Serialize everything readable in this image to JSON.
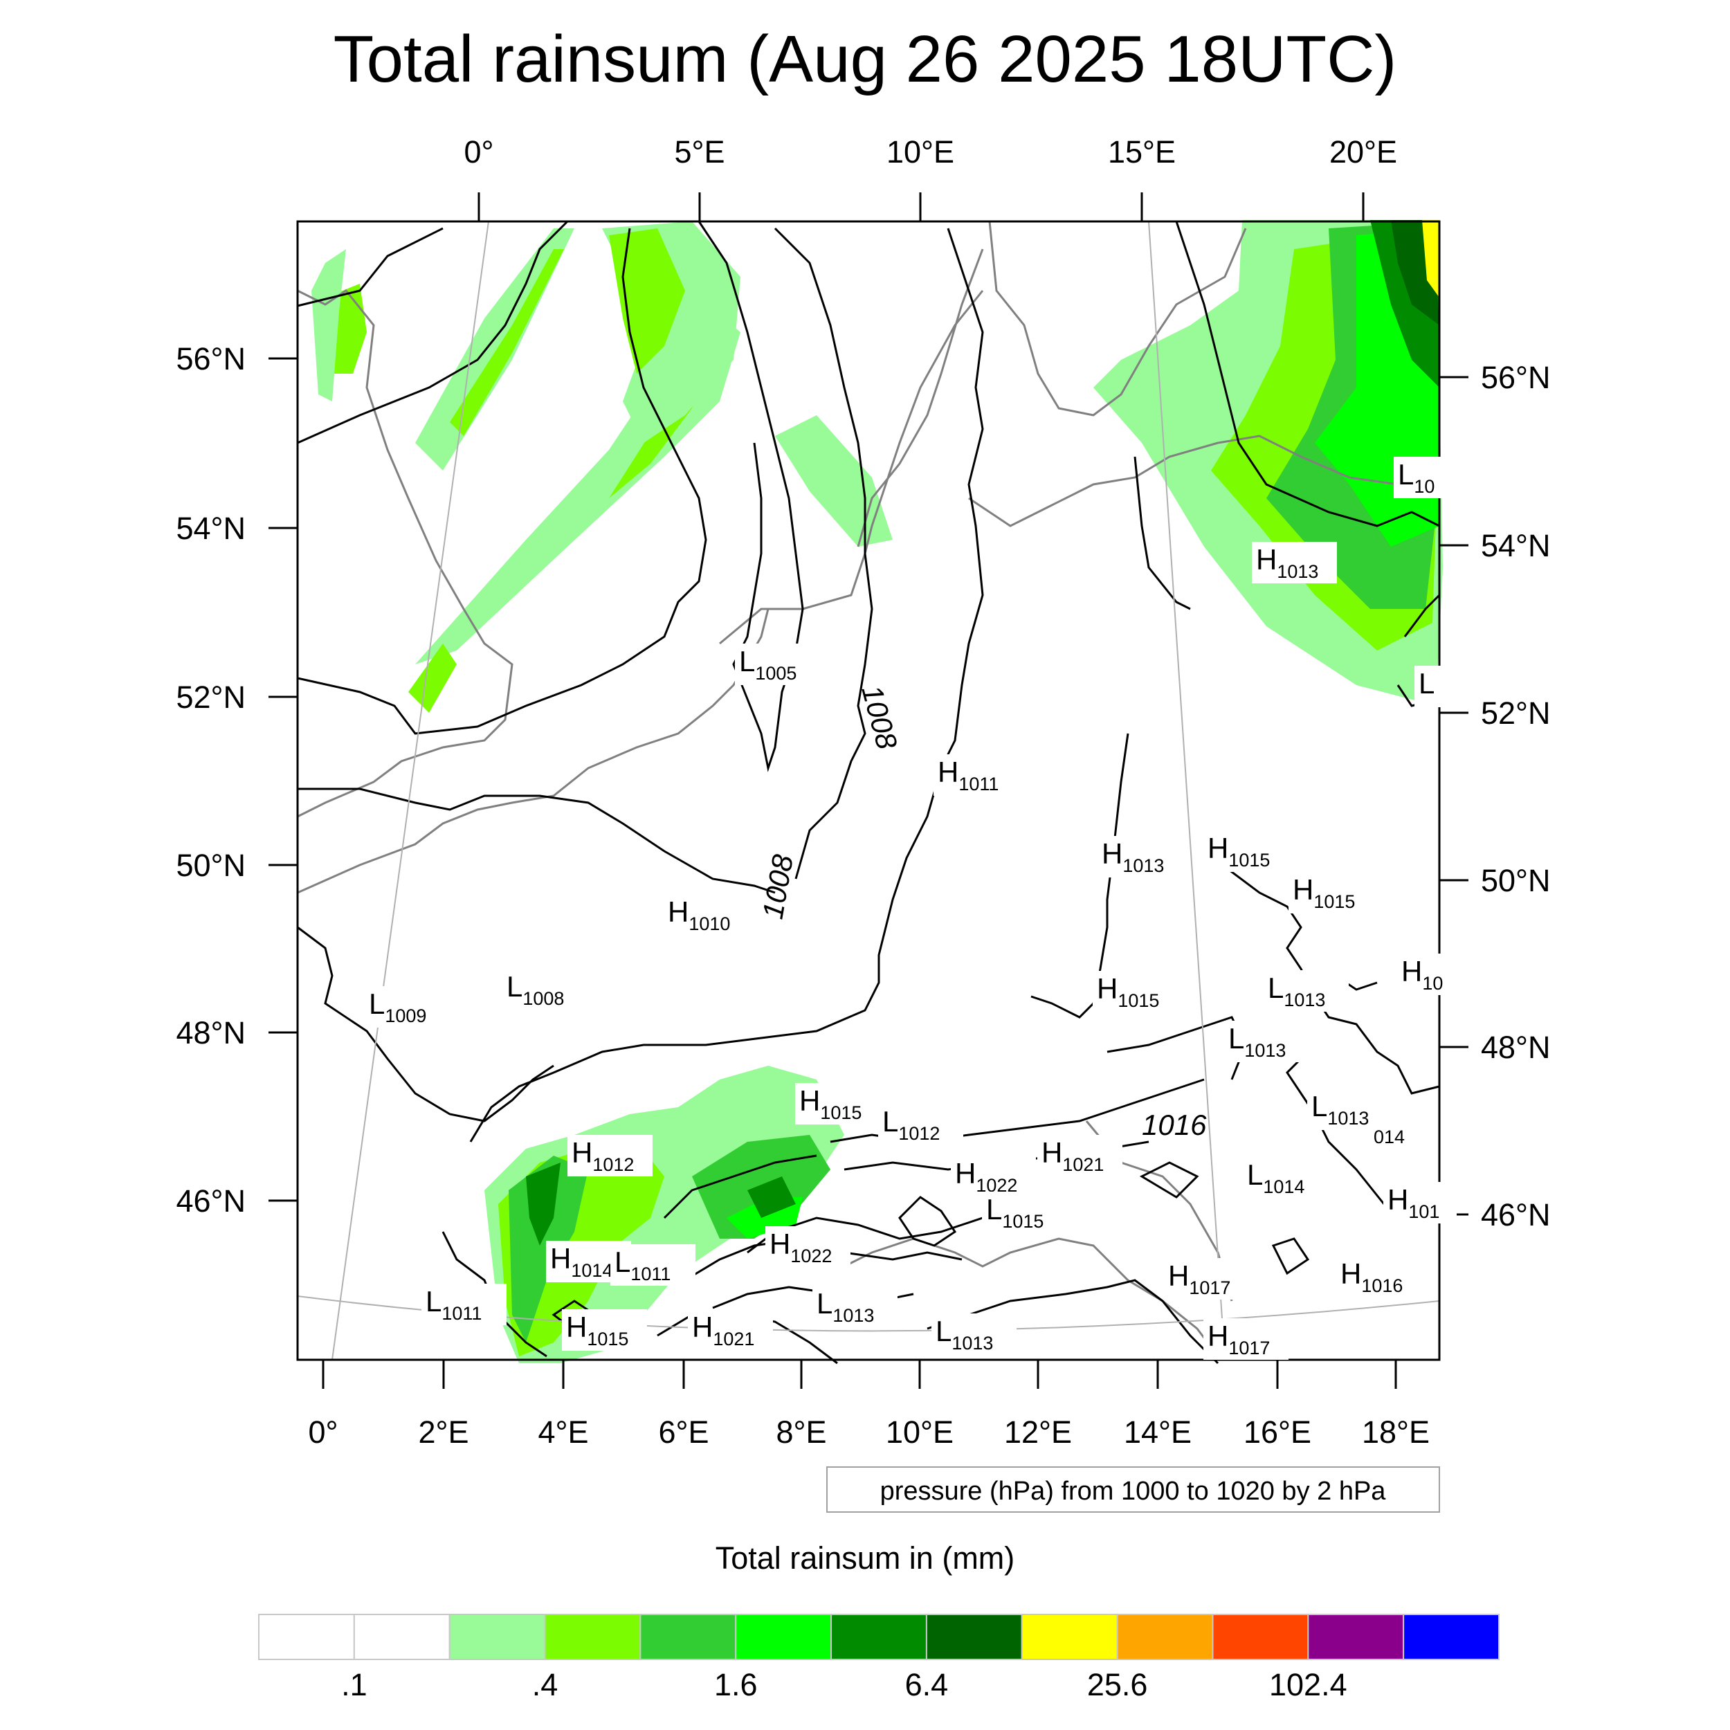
{
  "title": "Total rainsum (Aug 26 2025 18UTC)",
  "top_axis_labels": [
    "0°",
    "5°E",
    "10°E",
    "15°E",
    "20°E"
  ],
  "bottom_axis_labels": [
    "0°",
    "2°E",
    "4°E",
    "6°E",
    "8°E",
    "10°E",
    "12°E",
    "14°E",
    "16°E",
    "18°E"
  ],
  "left_axis_labels": [
    "56°N",
    "54°N",
    "52°N",
    "50°N",
    "48°N",
    "46°N"
  ],
  "right_axis_labels": [
    "56°N",
    "54°N",
    "52°N",
    "50°N",
    "48°N",
    "46°N"
  ],
  "contour_note": "pressure (hPa) from 1000 to 1020 by 2 hPa",
  "contour_labels": [
    "1008",
    "1008",
    "1016"
  ],
  "pressure_centers": [
    {
      "t": "L",
      "v": "1005"
    },
    {
      "t": "H",
      "v": "1011"
    },
    {
      "t": "H",
      "v": "1013"
    },
    {
      "t": "H",
      "v": "1015"
    },
    {
      "t": "H",
      "v": "1015"
    },
    {
      "t": "H",
      "v": "1010"
    },
    {
      "t": "L",
      "v": "1008"
    },
    {
      "t": "L",
      "v": "1009"
    },
    {
      "t": "H",
      "v": "1015"
    },
    {
      "t": "L",
      "v": "1013"
    },
    {
      "t": "H",
      "v": "10"
    },
    {
      "t": "L",
      "v": "1013"
    },
    {
      "t": "H",
      "v": "1015"
    },
    {
      "t": "L",
      "v": "1012"
    },
    {
      "t": "L",
      "v": "1013"
    },
    {
      "t": "H",
      "v": "1012"
    },
    {
      "t": "H",
      "v": "1021"
    },
    {
      "t": "H",
      "v": "1022"
    },
    {
      "t": "L",
      "v": "1014"
    },
    {
      "t": "L",
      "v": "1015"
    },
    {
      "t": "H",
      "v": "101"
    },
    {
      "t": "H",
      "v": "1014"
    },
    {
      "t": "L",
      "v": "1011"
    },
    {
      "t": "H",
      "v": "1022"
    },
    {
      "t": "H",
      "v": "1016"
    },
    {
      "t": "H",
      "v": "1017"
    },
    {
      "t": "L",
      "v": "1011"
    },
    {
      "t": "L",
      "v": "1013"
    },
    {
      "t": "H",
      "v": "1015"
    },
    {
      "t": "H",
      "v": "1021"
    },
    {
      "t": "L",
      "v": "1013"
    },
    {
      "t": "H",
      "v": "1017"
    },
    {
      "t": "H",
      "v": "1013"
    },
    {
      "t": "L",
      "v": "10"
    },
    {
      "t": "L",
      "v": ""
    }
  ],
  "edge_fragment": "014",
  "colorbar": {
    "title": "Total rainsum in (mm)",
    "colors": [
      "#ffffff",
      "#ffffff",
      "#98fb98",
      "#7cfc00",
      "#32cd32",
      "#00ff00",
      "#008b00",
      "#006400",
      "#ffff00",
      "#ffa500",
      "#ff4500",
      "#8b008b",
      "#0000ff"
    ],
    "labels": [
      ".1",
      ".4",
      "1.6",
      "6.4",
      "25.6",
      "102.4"
    ]
  },
  "colors": {
    "coastline": "#808080",
    "contour": "#000000",
    "grid": "#b0b0b0"
  }
}
